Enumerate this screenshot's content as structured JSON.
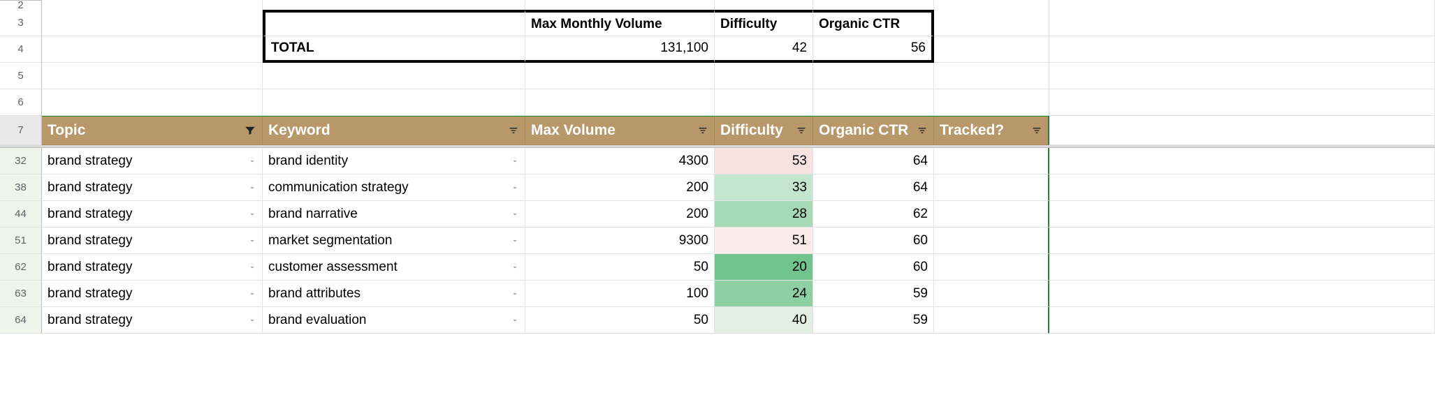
{
  "row_numbers": {
    "r0": "2",
    "r1": "3",
    "r2": "4",
    "r3": "5",
    "r4": "6",
    "hdr": "7",
    "d0": "32",
    "d1": "38",
    "d2": "44",
    "d3": "51",
    "d4": "62",
    "d5": "63",
    "d6": "64"
  },
  "summary": {
    "headers": {
      "vol": "Max Monthly Volume",
      "diff": "Difficulty",
      "ctr": "Organic CTR"
    },
    "total_label": "TOTAL",
    "total": {
      "vol": "131,100",
      "diff": "42",
      "ctr": "56"
    }
  },
  "columns": {
    "topic": "Topic",
    "keyword": "Keyword",
    "max_volume": "Max Volume",
    "difficulty": "Difficulty",
    "organic_ctr": "Organic CTR",
    "tracked": "Tracked?"
  },
  "rows": [
    {
      "topic": "brand strategy",
      "keyword": "brand identity",
      "vol": "4300",
      "diff": "53",
      "ctr": "64",
      "diff_bg": "#f7e2e0"
    },
    {
      "topic": "brand strategy",
      "keyword": "communication strategy",
      "vol": "200",
      "diff": "33",
      "ctr": "64",
      "diff_bg": "#c5e6ce"
    },
    {
      "topic": "brand strategy",
      "keyword": "brand narrative",
      "vol": "200",
      "diff": "28",
      "ctr": "62",
      "diff_bg": "#a6d9b5"
    },
    {
      "topic": "brand strategy",
      "keyword": "market segmentation",
      "vol": "9300",
      "diff": "51",
      "ctr": "60",
      "diff_bg": "#f9eceb"
    },
    {
      "topic": "brand strategy",
      "keyword": "customer assessment",
      "vol": "50",
      "diff": "20",
      "ctr": "60",
      "diff_bg": "#72c48d"
    },
    {
      "topic": "brand strategy",
      "keyword": "brand attributes",
      "vol": "100",
      "diff": "24",
      "ctr": "59",
      "diff_bg": "#8ed0a3"
    },
    {
      "topic": "brand strategy",
      "keyword": "brand evaluation",
      "vol": "50",
      "diff": "40",
      "ctr": "59",
      "diff_bg": "#e2f0e4"
    }
  ],
  "style": {
    "header_bg": "#b8986b",
    "row_header_tint": "#eef4ec",
    "gridline": "#e2e2e2"
  }
}
